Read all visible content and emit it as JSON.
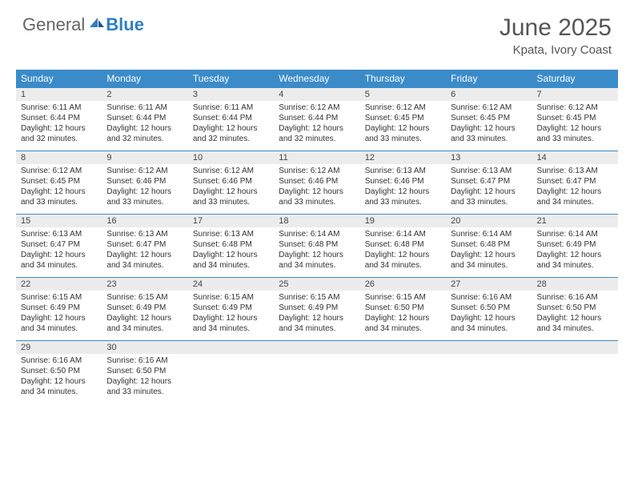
{
  "brand": {
    "text1": "General",
    "text2": "Blue"
  },
  "title": "June 2025",
  "location": "Kpata, Ivory Coast",
  "accent_color": "#3b8bc9",
  "header_bg": "#ececec",
  "day_headers": [
    "Sunday",
    "Monday",
    "Tuesday",
    "Wednesday",
    "Thursday",
    "Friday",
    "Saturday"
  ],
  "weeks": [
    [
      {
        "n": "1",
        "sr": "Sunrise: 6:11 AM",
        "ss": "Sunset: 6:44 PM",
        "d1": "Daylight: 12 hours",
        "d2": "and 32 minutes."
      },
      {
        "n": "2",
        "sr": "Sunrise: 6:11 AM",
        "ss": "Sunset: 6:44 PM",
        "d1": "Daylight: 12 hours",
        "d2": "and 32 minutes."
      },
      {
        "n": "3",
        "sr": "Sunrise: 6:11 AM",
        "ss": "Sunset: 6:44 PM",
        "d1": "Daylight: 12 hours",
        "d2": "and 32 minutes."
      },
      {
        "n": "4",
        "sr": "Sunrise: 6:12 AM",
        "ss": "Sunset: 6:44 PM",
        "d1": "Daylight: 12 hours",
        "d2": "and 32 minutes."
      },
      {
        "n": "5",
        "sr": "Sunrise: 6:12 AM",
        "ss": "Sunset: 6:45 PM",
        "d1": "Daylight: 12 hours",
        "d2": "and 33 minutes."
      },
      {
        "n": "6",
        "sr": "Sunrise: 6:12 AM",
        "ss": "Sunset: 6:45 PM",
        "d1": "Daylight: 12 hours",
        "d2": "and 33 minutes."
      },
      {
        "n": "7",
        "sr": "Sunrise: 6:12 AM",
        "ss": "Sunset: 6:45 PM",
        "d1": "Daylight: 12 hours",
        "d2": "and 33 minutes."
      }
    ],
    [
      {
        "n": "8",
        "sr": "Sunrise: 6:12 AM",
        "ss": "Sunset: 6:45 PM",
        "d1": "Daylight: 12 hours",
        "d2": "and 33 minutes."
      },
      {
        "n": "9",
        "sr": "Sunrise: 6:12 AM",
        "ss": "Sunset: 6:46 PM",
        "d1": "Daylight: 12 hours",
        "d2": "and 33 minutes."
      },
      {
        "n": "10",
        "sr": "Sunrise: 6:12 AM",
        "ss": "Sunset: 6:46 PM",
        "d1": "Daylight: 12 hours",
        "d2": "and 33 minutes."
      },
      {
        "n": "11",
        "sr": "Sunrise: 6:12 AM",
        "ss": "Sunset: 6:46 PM",
        "d1": "Daylight: 12 hours",
        "d2": "and 33 minutes."
      },
      {
        "n": "12",
        "sr": "Sunrise: 6:13 AM",
        "ss": "Sunset: 6:46 PM",
        "d1": "Daylight: 12 hours",
        "d2": "and 33 minutes."
      },
      {
        "n": "13",
        "sr": "Sunrise: 6:13 AM",
        "ss": "Sunset: 6:47 PM",
        "d1": "Daylight: 12 hours",
        "d2": "and 33 minutes."
      },
      {
        "n": "14",
        "sr": "Sunrise: 6:13 AM",
        "ss": "Sunset: 6:47 PM",
        "d1": "Daylight: 12 hours",
        "d2": "and 34 minutes."
      }
    ],
    [
      {
        "n": "15",
        "sr": "Sunrise: 6:13 AM",
        "ss": "Sunset: 6:47 PM",
        "d1": "Daylight: 12 hours",
        "d2": "and 34 minutes."
      },
      {
        "n": "16",
        "sr": "Sunrise: 6:13 AM",
        "ss": "Sunset: 6:47 PM",
        "d1": "Daylight: 12 hours",
        "d2": "and 34 minutes."
      },
      {
        "n": "17",
        "sr": "Sunrise: 6:13 AM",
        "ss": "Sunset: 6:48 PM",
        "d1": "Daylight: 12 hours",
        "d2": "and 34 minutes."
      },
      {
        "n": "18",
        "sr": "Sunrise: 6:14 AM",
        "ss": "Sunset: 6:48 PM",
        "d1": "Daylight: 12 hours",
        "d2": "and 34 minutes."
      },
      {
        "n": "19",
        "sr": "Sunrise: 6:14 AM",
        "ss": "Sunset: 6:48 PM",
        "d1": "Daylight: 12 hours",
        "d2": "and 34 minutes."
      },
      {
        "n": "20",
        "sr": "Sunrise: 6:14 AM",
        "ss": "Sunset: 6:48 PM",
        "d1": "Daylight: 12 hours",
        "d2": "and 34 minutes."
      },
      {
        "n": "21",
        "sr": "Sunrise: 6:14 AM",
        "ss": "Sunset: 6:49 PM",
        "d1": "Daylight: 12 hours",
        "d2": "and 34 minutes."
      }
    ],
    [
      {
        "n": "22",
        "sr": "Sunrise: 6:15 AM",
        "ss": "Sunset: 6:49 PM",
        "d1": "Daylight: 12 hours",
        "d2": "and 34 minutes."
      },
      {
        "n": "23",
        "sr": "Sunrise: 6:15 AM",
        "ss": "Sunset: 6:49 PM",
        "d1": "Daylight: 12 hours",
        "d2": "and 34 minutes."
      },
      {
        "n": "24",
        "sr": "Sunrise: 6:15 AM",
        "ss": "Sunset: 6:49 PM",
        "d1": "Daylight: 12 hours",
        "d2": "and 34 minutes."
      },
      {
        "n": "25",
        "sr": "Sunrise: 6:15 AM",
        "ss": "Sunset: 6:49 PM",
        "d1": "Daylight: 12 hours",
        "d2": "and 34 minutes."
      },
      {
        "n": "26",
        "sr": "Sunrise: 6:15 AM",
        "ss": "Sunset: 6:50 PM",
        "d1": "Daylight: 12 hours",
        "d2": "and 34 minutes."
      },
      {
        "n": "27",
        "sr": "Sunrise: 6:16 AM",
        "ss": "Sunset: 6:50 PM",
        "d1": "Daylight: 12 hours",
        "d2": "and 34 minutes."
      },
      {
        "n": "28",
        "sr": "Sunrise: 6:16 AM",
        "ss": "Sunset: 6:50 PM",
        "d1": "Daylight: 12 hours",
        "d2": "and 34 minutes."
      }
    ],
    [
      {
        "n": "29",
        "sr": "Sunrise: 6:16 AM",
        "ss": "Sunset: 6:50 PM",
        "d1": "Daylight: 12 hours",
        "d2": "and 34 minutes."
      },
      {
        "n": "30",
        "sr": "Sunrise: 6:16 AM",
        "ss": "Sunset: 6:50 PM",
        "d1": "Daylight: 12 hours",
        "d2": "and 33 minutes."
      },
      null,
      null,
      null,
      null,
      null
    ]
  ]
}
